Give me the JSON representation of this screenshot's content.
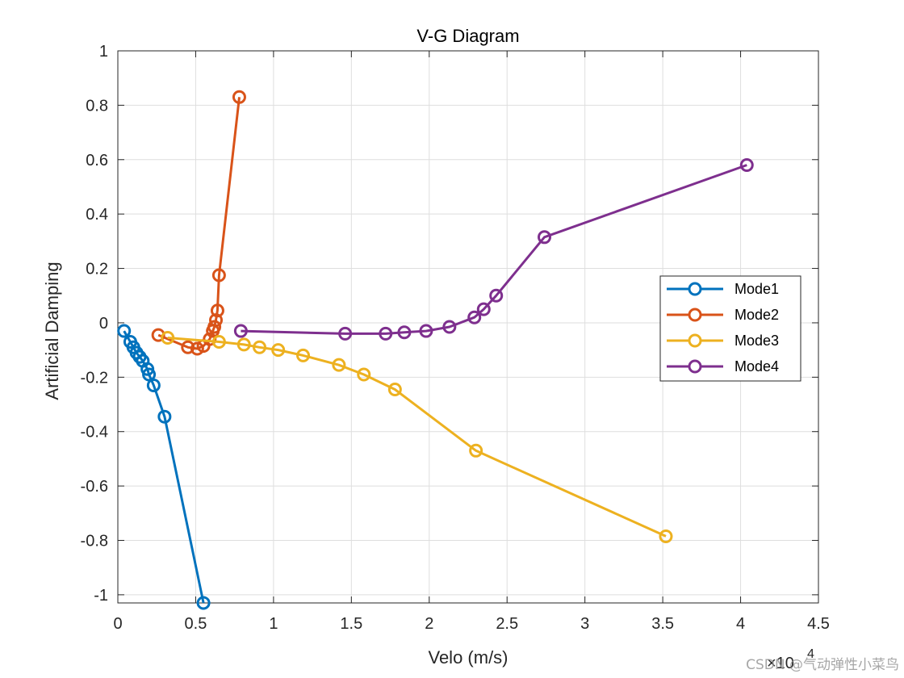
{
  "chart_data": {
    "type": "line",
    "title": "V-G Diagram",
    "xlabel": "Velo (m/s)",
    "ylabel": "Artificial Damping",
    "x_exponent_label": "×10",
    "x_exponent_power": "4",
    "xlim": [
      0,
      4.5
    ],
    "ylim": [
      -1.03,
      1
    ],
    "xticks": [
      0,
      0.5,
      1,
      1.5,
      2,
      2.5,
      3,
      3.5,
      4,
      4.5
    ],
    "xtick_labels": [
      "0",
      "0.5",
      "1",
      "1.5",
      "2",
      "2.5",
      "3",
      "3.5",
      "4",
      "4.5"
    ],
    "yticks": [
      1,
      0.8,
      0.6,
      0.4,
      0.2,
      0,
      -0.2,
      -0.4,
      -0.6,
      -0.8,
      -1
    ],
    "ytick_labels": [
      "1",
      "0.8",
      "0.6",
      "0.4",
      "0.2",
      "0",
      "-0.2",
      "-0.4",
      "-0.6",
      "-0.8",
      "-1"
    ],
    "grid": true,
    "legend_position": "right",
    "series": [
      {
        "name": "Mode1",
        "color": "#0072BD",
        "points": [
          [
            0.04,
            -0.03
          ],
          [
            0.08,
            -0.07
          ],
          [
            0.1,
            -0.09
          ],
          [
            0.12,
            -0.11
          ],
          [
            0.14,
            -0.125
          ],
          [
            0.16,
            -0.14
          ],
          [
            0.19,
            -0.17
          ],
          [
            0.2,
            -0.19
          ],
          [
            0.23,
            -0.23
          ],
          [
            0.3,
            -0.345
          ],
          [
            0.55,
            -1.03
          ]
        ]
      },
      {
        "name": "Mode2",
        "color": "#D95319",
        "points": [
          [
            0.26,
            -0.045
          ],
          [
            0.45,
            -0.09
          ],
          [
            0.51,
            -0.095
          ],
          [
            0.55,
            -0.085
          ],
          [
            0.59,
            -0.06
          ],
          [
            0.61,
            -0.03
          ],
          [
            0.62,
            -0.015
          ],
          [
            0.63,
            0.01
          ],
          [
            0.64,
            0.045
          ],
          [
            0.65,
            0.175
          ],
          [
            0.78,
            0.83
          ]
        ]
      },
      {
        "name": "Mode3",
        "color": "#EDB120",
        "points": [
          [
            0.32,
            -0.055
          ],
          [
            0.65,
            -0.07
          ],
          [
            0.81,
            -0.08
          ],
          [
            0.91,
            -0.09
          ],
          [
            1.03,
            -0.1
          ],
          [
            1.19,
            -0.12
          ],
          [
            1.42,
            -0.155
          ],
          [
            1.58,
            -0.19
          ],
          [
            1.78,
            -0.245
          ],
          [
            2.3,
            -0.47
          ],
          [
            3.52,
            -0.785
          ]
        ]
      },
      {
        "name": "Mode4",
        "color": "#7E2F8E",
        "points": [
          [
            0.79,
            -0.03
          ],
          [
            1.46,
            -0.04
          ],
          [
            1.72,
            -0.04
          ],
          [
            1.84,
            -0.035
          ],
          [
            1.98,
            -0.03
          ],
          [
            2.13,
            -0.015
          ],
          [
            2.29,
            0.02
          ],
          [
            2.35,
            0.05
          ],
          [
            2.43,
            0.1
          ],
          [
            2.74,
            0.315
          ],
          [
            4.04,
            0.58
          ]
        ]
      }
    ]
  },
  "watermark": "CSDN @气动弹性小菜鸟"
}
